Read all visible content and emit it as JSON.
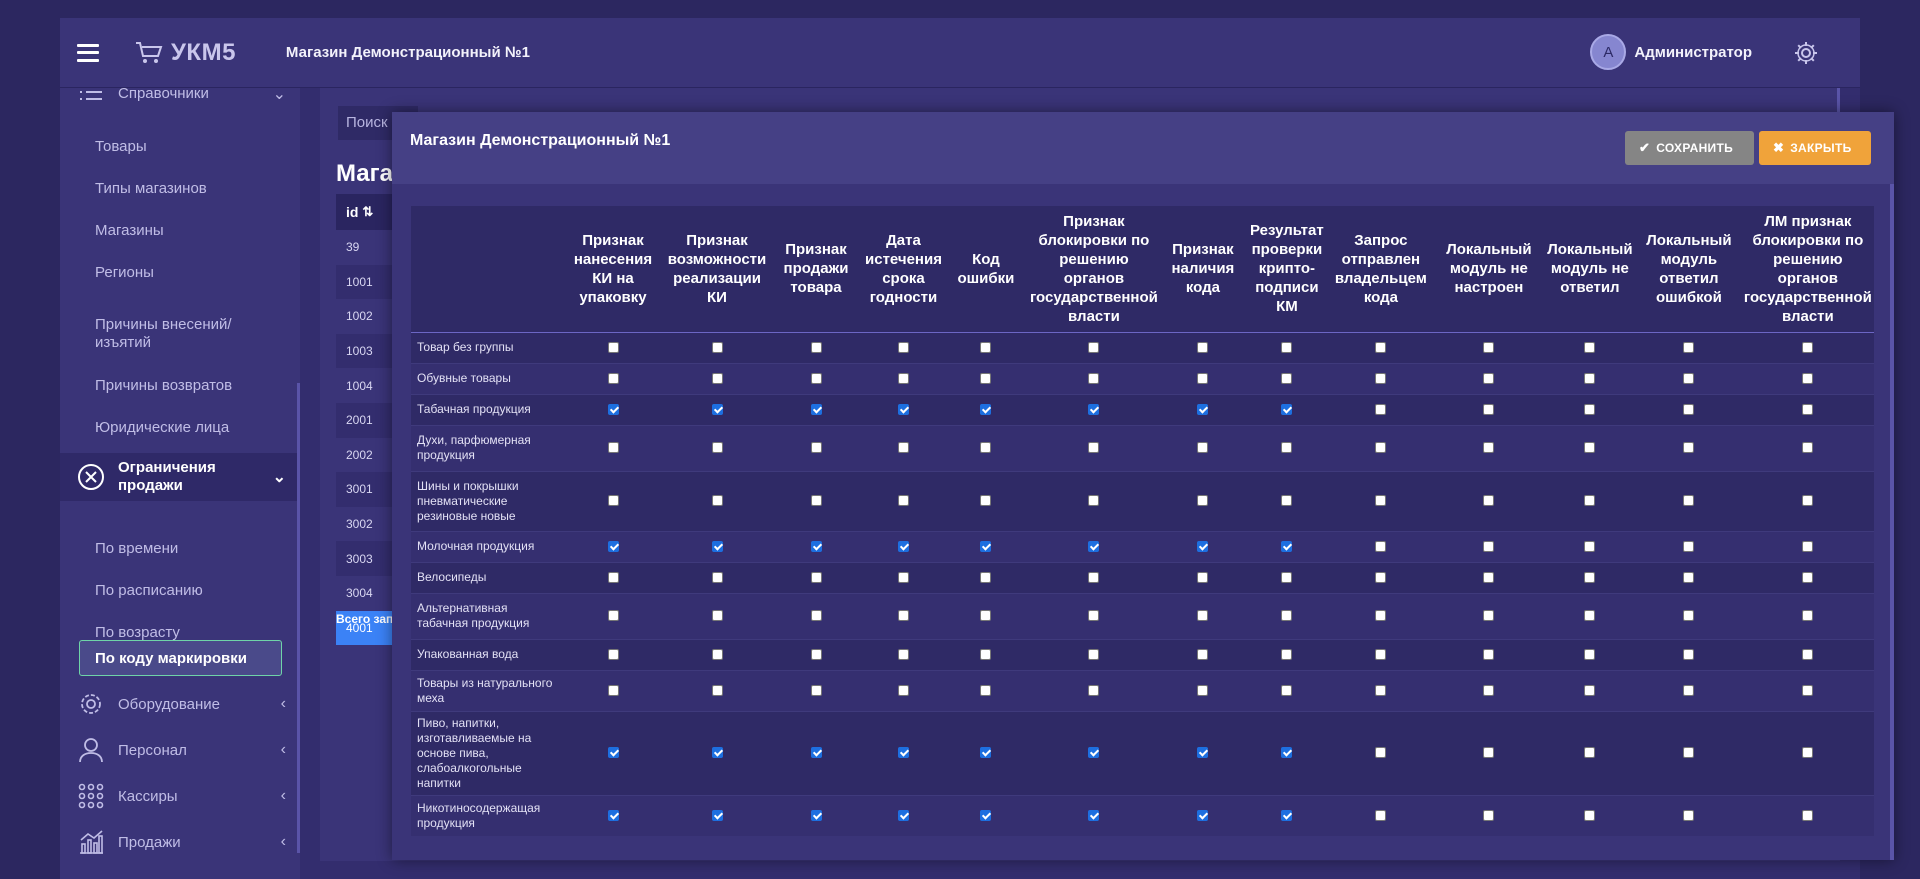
{
  "header": {
    "logo_text": "УКМ5",
    "store_title": "Магазин Демонстрационный №1",
    "user": {
      "avatar_letter": "А",
      "name": "Администратор"
    }
  },
  "sidebar": {
    "top_group": "Справочники",
    "items": [
      "Товары",
      "Типы магазинов",
      "Магазины",
      "Регионы",
      "Причины внесений/ изъятий",
      "Причины возвратов",
      "Юридические лица"
    ],
    "active_group": "Ограничения продажи",
    "sub_items": [
      "По времени",
      "По расписанию",
      "По возрасту"
    ],
    "selected_item": "По коду маркировки",
    "groups": [
      "Оборудование",
      "Персонал",
      "Кассиры",
      "Продажи"
    ]
  },
  "background": {
    "search_placeholder": "Поиск",
    "title": "Мага",
    "column_header": "id",
    "ids": [
      "39",
      "1001",
      "1002",
      "1003",
      "1004",
      "2001",
      "2002",
      "3001",
      "3002",
      "3003",
      "3004",
      "4001"
    ],
    "total_label": "Всего зап"
  },
  "modal": {
    "title": "Магазин Демонстрационный №1",
    "save_label": "СОХРАНИТЬ",
    "close_label": "ЗАКРЫТЬ",
    "columns": [
      "Признак нанесения КИ на упаковку",
      "Признак возможности реализации КИ",
      "Признак продажи товара",
      "Дата истечения срока годности",
      "Код ошибки",
      "Признак блокировки по решению органов государственной власти",
      "Признак наличия кода",
      "Результат проверки крипто-подписи КМ",
      "Запрос отправлен владельцем кода",
      "Локальный модуль не настроен",
      "Локальный модуль не ответил",
      "Локальный модуль ответил ошибкой",
      "ЛМ признак блокировки по решению органов государственной власти"
    ],
    "rows": [
      {
        "name": "Товар без группы",
        "checked": [
          0,
          0,
          0,
          0,
          0,
          0,
          0,
          0,
          0,
          0,
          0,
          0,
          0
        ]
      },
      {
        "name": "Обувные товары",
        "checked": [
          0,
          0,
          0,
          0,
          0,
          0,
          0,
          0,
          0,
          0,
          0,
          0,
          0
        ]
      },
      {
        "name": "Табачная продукция",
        "checked": [
          1,
          1,
          1,
          1,
          1,
          1,
          1,
          1,
          0,
          0,
          0,
          0,
          0
        ]
      },
      {
        "name": "Духи, парфюмерная продукция",
        "checked": [
          0,
          0,
          0,
          0,
          0,
          0,
          0,
          0,
          0,
          0,
          0,
          0,
          0
        ]
      },
      {
        "name": "Шины и покрышки пневматические резиновые новые",
        "checked": [
          0,
          0,
          0,
          0,
          0,
          0,
          0,
          0,
          0,
          0,
          0,
          0,
          0
        ]
      },
      {
        "name": "Молочная продукция",
        "checked": [
          1,
          1,
          1,
          1,
          1,
          1,
          1,
          1,
          0,
          0,
          0,
          0,
          0
        ]
      },
      {
        "name": "Велосипеды",
        "checked": [
          0,
          0,
          0,
          0,
          0,
          0,
          0,
          0,
          0,
          0,
          0,
          0,
          0
        ]
      },
      {
        "name": "Альтернативная табачная продукция",
        "checked": [
          0,
          0,
          0,
          0,
          0,
          0,
          0,
          0,
          0,
          0,
          0,
          0,
          0
        ]
      },
      {
        "name": "Упакованная вода",
        "checked": [
          0,
          0,
          0,
          0,
          0,
          0,
          0,
          0,
          0,
          0,
          0,
          0,
          0
        ]
      },
      {
        "name": "Товары из натурального меха",
        "checked": [
          0,
          0,
          0,
          0,
          0,
          0,
          0,
          0,
          0,
          0,
          0,
          0,
          0
        ]
      },
      {
        "name": "Пиво, напитки, изготавливаемые на основе пива, слабоалкогольные напитки",
        "checked": [
          1,
          1,
          1,
          1,
          1,
          1,
          1,
          1,
          0,
          0,
          0,
          0,
          0
        ]
      },
      {
        "name": "Никотиносодержащая продукция",
        "checked": [
          1,
          1,
          1,
          1,
          1,
          1,
          1,
          1,
          0,
          0,
          0,
          0,
          0
        ]
      }
    ]
  }
}
